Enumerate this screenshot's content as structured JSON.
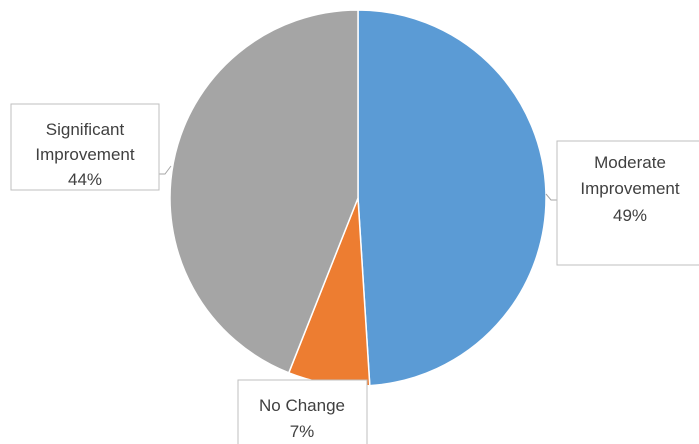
{
  "chart_data": {
    "type": "pie",
    "title": "",
    "series": [
      {
        "categories": [
          "Moderate Improvement",
          "No Change",
          "Significant Improvement"
        ],
        "values": [
          49,
          7,
          44
        ],
        "colors": [
          "#5B9BD5",
          "#ED7D31",
          "#A5A5A5"
        ]
      }
    ],
    "data_labels": [
      {
        "category": "Moderate Improvement",
        "line1": "Moderate",
        "line2": "Improvement",
        "percent": "49%"
      },
      {
        "category": "No Change",
        "line1": "No Change",
        "line2": "",
        "percent": "7%"
      },
      {
        "category": "Significant Improvement",
        "line1": "Significant",
        "line2": "Improvement",
        "percent": "44%"
      }
    ],
    "start_angle_deg": 0,
    "direction": "clockwise",
    "legend": "none",
    "slice_border_color": "#ffffff",
    "label_border_color": "#BFBFBF",
    "label_text_color": "#404040"
  }
}
